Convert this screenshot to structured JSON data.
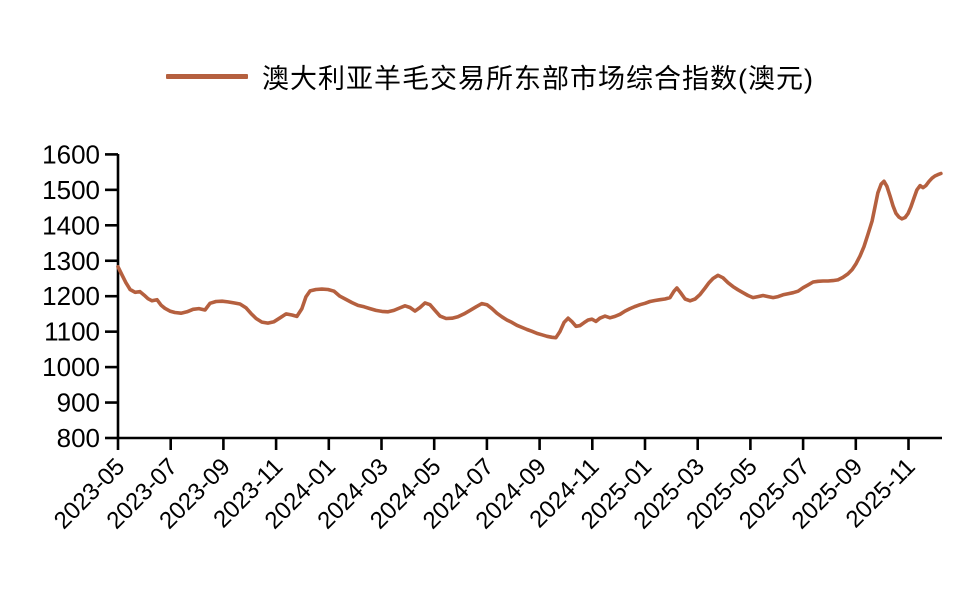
{
  "legend": {
    "label": "澳大利亚羊毛交易所东部市场综合指数(澳元)"
  },
  "colors": {
    "series": "#B5603F",
    "axis": "#000000",
    "background": "#FFFFFF",
    "text": "#000000"
  },
  "chart_data": {
    "type": "line",
    "title": "",
    "xlabel": "",
    "ylabel": "",
    "grid": false,
    "legend_position": "top-center",
    "y_axis": {
      "min": 800,
      "max": 1600,
      "step": 100,
      "tick_labels": [
        "800",
        "900",
        "1000",
        "1100",
        "1200",
        "1300",
        "1400",
        "1500",
        "1600"
      ]
    },
    "x_axis": {
      "start": "2023-05",
      "months_per_tick": 2,
      "extent_months": 31.3,
      "tick_labels": [
        "2023-05",
        "2023-07",
        "2023-09",
        "2023-11",
        "2024-01",
        "2024-03",
        "2024-05",
        "2024-07",
        "2024-09",
        "2024-11",
        "2025-01",
        "2025-03",
        "2025-05",
        "2025-07",
        "2025-09",
        "2025-11"
      ]
    },
    "series": [
      {
        "name": "澳大利亚羊毛交易所东部市场综合指数(澳元)",
        "color": "#B5603F",
        "points": [
          [
            0.0,
            1283
          ],
          [
            0.15,
            1260
          ],
          [
            0.3,
            1238
          ],
          [
            0.46,
            1219
          ],
          [
            0.65,
            1211
          ],
          [
            0.83,
            1213
          ],
          [
            0.99,
            1203
          ],
          [
            1.14,
            1193
          ],
          [
            1.29,
            1187
          ],
          [
            1.48,
            1190
          ],
          [
            1.63,
            1175
          ],
          [
            1.78,
            1166
          ],
          [
            1.97,
            1158
          ],
          [
            2.16,
            1154
          ],
          [
            2.39,
            1152
          ],
          [
            2.62,
            1156
          ],
          [
            2.85,
            1163
          ],
          [
            3.07,
            1165
          ],
          [
            3.3,
            1161
          ],
          [
            3.49,
            1180
          ],
          [
            3.72,
            1185
          ],
          [
            3.95,
            1186
          ],
          [
            4.17,
            1184
          ],
          [
            4.4,
            1181
          ],
          [
            4.63,
            1178
          ],
          [
            4.86,
            1167
          ],
          [
            5.05,
            1151
          ],
          [
            5.24,
            1137
          ],
          [
            5.46,
            1127
          ],
          [
            5.69,
            1124
          ],
          [
            5.92,
            1128
          ],
          [
            6.15,
            1139
          ],
          [
            6.38,
            1150
          ],
          [
            6.6,
            1147
          ],
          [
            6.79,
            1143
          ],
          [
            6.98,
            1165
          ],
          [
            7.13,
            1198
          ],
          [
            7.29,
            1215
          ],
          [
            7.51,
            1219
          ],
          [
            7.74,
            1220
          ],
          [
            7.97,
            1219
          ],
          [
            8.2,
            1214
          ],
          [
            8.42,
            1200
          ],
          [
            8.65,
            1191
          ],
          [
            8.88,
            1182
          ],
          [
            9.11,
            1174
          ],
          [
            9.34,
            1170
          ],
          [
            9.56,
            1165
          ],
          [
            9.79,
            1160
          ],
          [
            10.02,
            1157
          ],
          [
            10.25,
            1156
          ],
          [
            10.47,
            1160
          ],
          [
            10.7,
            1167
          ],
          [
            10.89,
            1173
          ],
          [
            11.08,
            1168
          ],
          [
            11.27,
            1158
          ],
          [
            11.46,
            1168
          ],
          [
            11.65,
            1181
          ],
          [
            11.84,
            1176
          ],
          [
            12.03,
            1160
          ],
          [
            12.22,
            1144
          ],
          [
            12.45,
            1137
          ],
          [
            12.68,
            1138
          ],
          [
            12.9,
            1142
          ],
          [
            13.13,
            1150
          ],
          [
            13.36,
            1160
          ],
          [
            13.59,
            1170
          ],
          [
            13.81,
            1179
          ],
          [
            14.0,
            1176
          ],
          [
            14.19,
            1165
          ],
          [
            14.38,
            1152
          ],
          [
            14.57,
            1142
          ],
          [
            14.76,
            1133
          ],
          [
            14.95,
            1126
          ],
          [
            15.14,
            1118
          ],
          [
            15.33,
            1112
          ],
          [
            15.52,
            1106
          ],
          [
            15.71,
            1101
          ],
          [
            15.9,
            1095
          ],
          [
            16.09,
            1091
          ],
          [
            16.28,
            1087
          ],
          [
            16.47,
            1084
          ],
          [
            16.62,
            1083
          ],
          [
            16.77,
            1100
          ],
          [
            16.93,
            1126
          ],
          [
            17.08,
            1138
          ],
          [
            17.23,
            1128
          ],
          [
            17.38,
            1115
          ],
          [
            17.53,
            1117
          ],
          [
            17.68,
            1125
          ],
          [
            17.84,
            1133
          ],
          [
            17.99,
            1135
          ],
          [
            18.14,
            1129
          ],
          [
            18.29,
            1138
          ],
          [
            18.48,
            1144
          ],
          [
            18.67,
            1139
          ],
          [
            18.86,
            1143
          ],
          [
            19.05,
            1149
          ],
          [
            19.24,
            1158
          ],
          [
            19.43,
            1165
          ],
          [
            19.62,
            1171
          ],
          [
            19.81,
            1176
          ],
          [
            20.0,
            1180
          ],
          [
            20.19,
            1185
          ],
          [
            20.38,
            1188
          ],
          [
            20.57,
            1190
          ],
          [
            20.76,
            1192
          ],
          [
            20.95,
            1196
          ],
          [
            21.1,
            1214
          ],
          [
            21.21,
            1223
          ],
          [
            21.37,
            1208
          ],
          [
            21.52,
            1192
          ],
          [
            21.71,
            1187
          ],
          [
            21.9,
            1192
          ],
          [
            22.09,
            1205
          ],
          [
            22.28,
            1223
          ],
          [
            22.43,
            1238
          ],
          [
            22.58,
            1250
          ],
          [
            22.77,
            1259
          ],
          [
            22.96,
            1252
          ],
          [
            23.15,
            1238
          ],
          [
            23.34,
            1227
          ],
          [
            23.53,
            1218
          ],
          [
            23.72,
            1210
          ],
          [
            23.91,
            1202
          ],
          [
            24.1,
            1196
          ],
          [
            24.29,
            1199
          ],
          [
            24.48,
            1202
          ],
          [
            24.67,
            1199
          ],
          [
            24.86,
            1196
          ],
          [
            25.05,
            1199
          ],
          [
            25.24,
            1204
          ],
          [
            25.43,
            1207
          ],
          [
            25.62,
            1210
          ],
          [
            25.81,
            1214
          ],
          [
            26.0,
            1224
          ],
          [
            26.19,
            1232
          ],
          [
            26.38,
            1240
          ],
          [
            26.57,
            1242
          ],
          [
            26.76,
            1243
          ],
          [
            26.95,
            1243
          ],
          [
            27.13,
            1244
          ],
          [
            27.32,
            1246
          ],
          [
            27.51,
            1253
          ],
          [
            27.7,
            1263
          ],
          [
            27.86,
            1275
          ],
          [
            28.01,
            1292
          ],
          [
            28.16,
            1313
          ],
          [
            28.31,
            1340
          ],
          [
            28.46,
            1374
          ],
          [
            28.62,
            1412
          ],
          [
            28.73,
            1452
          ],
          [
            28.84,
            1492
          ],
          [
            28.96,
            1516
          ],
          [
            29.07,
            1524
          ],
          [
            29.18,
            1510
          ],
          [
            29.3,
            1482
          ],
          [
            29.41,
            1455
          ],
          [
            29.52,
            1434
          ],
          [
            29.64,
            1423
          ],
          [
            29.75,
            1418
          ],
          [
            29.87,
            1422
          ],
          [
            29.98,
            1433
          ],
          [
            30.09,
            1452
          ],
          [
            30.21,
            1477
          ],
          [
            30.32,
            1500
          ],
          [
            30.44,
            1512
          ],
          [
            30.55,
            1506
          ],
          [
            30.66,
            1512
          ],
          [
            30.78,
            1524
          ],
          [
            30.89,
            1533
          ],
          [
            31.0,
            1539
          ],
          [
            31.12,
            1543
          ],
          [
            31.23,
            1546
          ]
        ]
      }
    ]
  }
}
